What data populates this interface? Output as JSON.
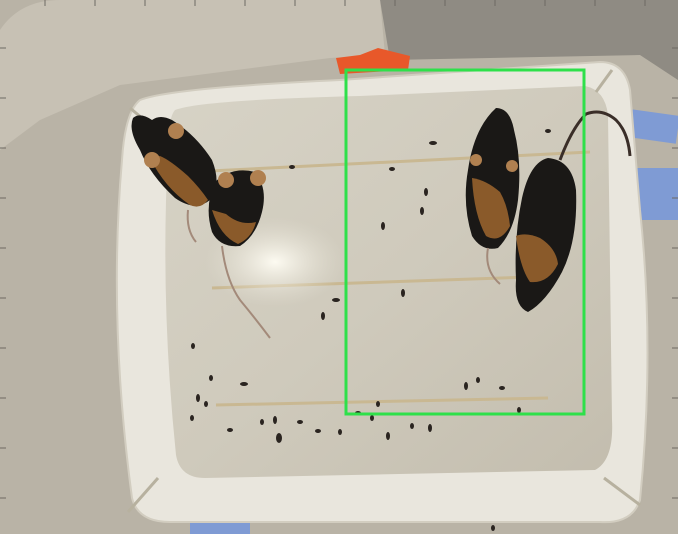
{
  "scene": {
    "description_visible_text": "",
    "animals": [
      {
        "kind": "mouse",
        "group": "left"
      },
      {
        "kind": "mouse",
        "group": "left"
      },
      {
        "kind": "mouse",
        "group": "right"
      },
      {
        "kind": "mouse",
        "group": "right"
      }
    ],
    "colors": {
      "background": "#9a958c",
      "table": "#c9c3b6",
      "arena_floor": "#dad6c9",
      "arena_rim": "#ebe8df",
      "tape_blue": "#7f9bd4",
      "tape_orange": "#e8582a",
      "roi_box": "#2ee04a",
      "mouse_dark": "#1a1816",
      "mouse_tan": "#8a5a2a"
    }
  }
}
